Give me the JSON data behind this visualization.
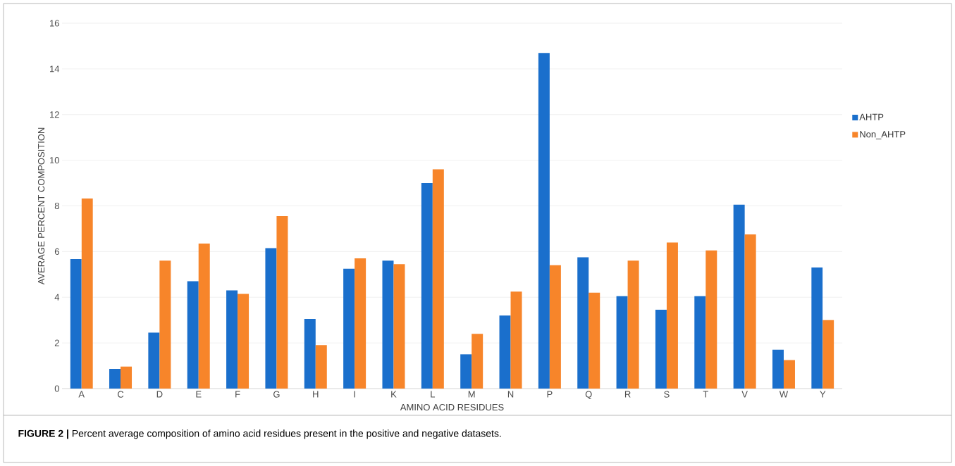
{
  "chart_data": {
    "type": "bar",
    "xlabel": "AMINO ACID RESIDUES",
    "ylabel": "AVERAGE PERCENT COMPOSITION",
    "categories": [
      "A",
      "C",
      "D",
      "E",
      "F",
      "G",
      "H",
      "I",
      "K",
      "L",
      "M",
      "N",
      "P",
      "Q",
      "R",
      "S",
      "T",
      "V",
      "W",
      "Y"
    ],
    "series": [
      {
        "name": "AHTP",
        "color": "#1a6fcc",
        "values": [
          5.67,
          0.86,
          2.45,
          4.7,
          4.3,
          6.15,
          3.05,
          5.25,
          5.6,
          9.0,
          1.5,
          3.2,
          14.7,
          5.75,
          4.05,
          3.45,
          4.05,
          8.05,
          1.7,
          5.3
        ]
      },
      {
        "name": "Non_AHTP",
        "color": "#f7852a",
        "values": [
          8.32,
          0.96,
          5.6,
          6.35,
          4.15,
          7.55,
          1.9,
          5.7,
          5.45,
          9.6,
          2.4,
          4.25,
          5.4,
          4.2,
          5.6,
          6.4,
          6.05,
          6.75,
          1.25,
          3.0
        ]
      }
    ],
    "ylim": [
      0,
      16
    ],
    "yticks": [
      0,
      2,
      4,
      6,
      8,
      10,
      12,
      14,
      16
    ],
    "grid": "y",
    "legend": "right",
    "annotations": [
      "**FIGURE 2 |** Percent average composition of amino acid residues present in the positive and negative datasets."
    ]
  }
}
